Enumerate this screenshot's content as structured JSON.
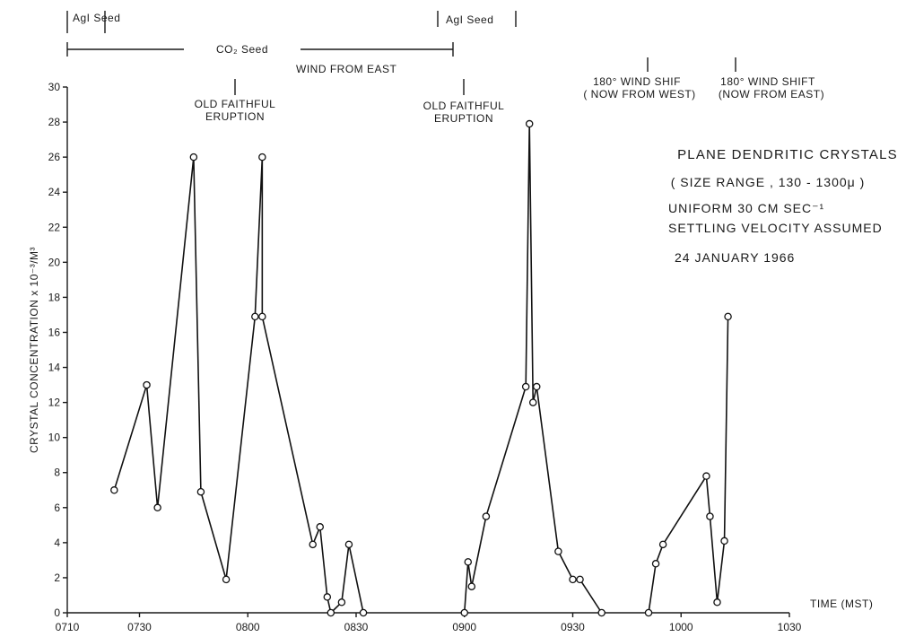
{
  "chart_data": {
    "type": "line",
    "title": "PLANE DENDRITIC CRYSTALS",
    "subtitle_lines": [
      "( SIZE RANGE , 130 - 1300μ )",
      "UNIFORM 30 CM SEC⁻¹",
      "SETTLING VELOCITY ASSUMED",
      "24   JANUARY 1966"
    ],
    "xlabel": "TIME (MST)",
    "ylabel": "CRYSTAL CONCENTRATION x 10⁻³/M³",
    "x_ticks": [
      "0710",
      "0730",
      "0800",
      "0830",
      "0900",
      "0930",
      "1000",
      "1030"
    ],
    "y_ticks": [
      "0",
      "2",
      "4",
      "6",
      "8",
      "10",
      "12",
      "14",
      "16",
      "18",
      "20",
      "22",
      "24",
      "26",
      "28",
      "30"
    ],
    "ylim": [
      0,
      30
    ],
    "xlim": [
      "0710",
      "1030"
    ],
    "grid": false,
    "segments": [
      [
        [
          "0723",
          7
        ],
        [
          "0732",
          13
        ],
        [
          "0735",
          6
        ],
        [
          "0745",
          26
        ],
        [
          "0747",
          6.9
        ],
        [
          "0754",
          1.9
        ],
        [
          "0802",
          16.9
        ],
        [
          "0804",
          26
        ],
        [
          "0804",
          16.9
        ],
        [
          "0818",
          3.9
        ],
        [
          "0820",
          4.9
        ],
        [
          "0822",
          0.9
        ],
        [
          "0823",
          0
        ],
        [
          "0826",
          0.6
        ],
        [
          "0828",
          3.9
        ],
        [
          "0832",
          0
        ]
      ],
      [
        [
          "0900",
          0
        ],
        [
          "0901",
          2.9
        ],
        [
          "0902",
          1.5
        ],
        [
          "0906",
          5.5
        ],
        [
          "0917",
          12.9
        ],
        [
          "0918",
          27.9
        ],
        [
          "0919",
          12
        ],
        [
          "0920",
          12.9
        ],
        [
          "0926",
          3.5
        ],
        [
          "0930",
          1.9
        ],
        [
          "0932",
          1.9
        ],
        [
          "0938",
          0
        ]
      ],
      [
        [
          "0951",
          0
        ],
        [
          "0953",
          2.8
        ],
        [
          "0955",
          3.9
        ],
        [
          "1007",
          7.8
        ],
        [
          "1008",
          5.5
        ],
        [
          "1010",
          0.6
        ],
        [
          "1012",
          4.1
        ],
        [
          "1013",
          16.9
        ]
      ]
    ],
    "annotations": {
      "agi_seed_1": "AgI Seed",
      "co2_seed": "CO₂ Seed",
      "agi_seed_2": "AgI Seed",
      "wind_from_east": "WIND FROM EAST",
      "old_faithful_1": [
        "OLD FAITHFUL",
        "ERUPTION"
      ],
      "old_faithful_2": [
        "OLD FAITHFUL",
        "ERUPTION"
      ],
      "wind_shift_1": [
        "180° WIND  SHIF",
        "( NOW FROM WEST)"
      ],
      "wind_shift_2": [
        "180° WIND SHIFT",
        "(NOW FROM EAST)"
      ]
    }
  }
}
